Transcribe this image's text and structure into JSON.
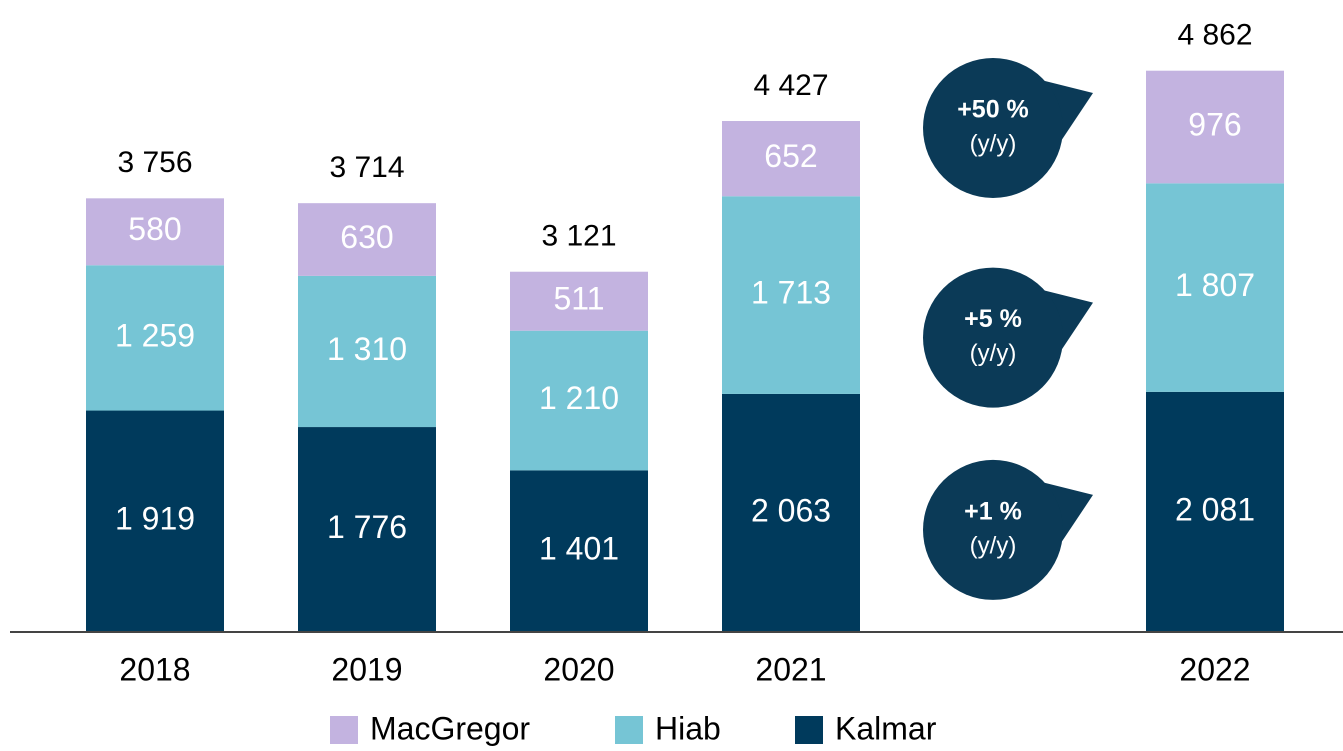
{
  "chart_data": {
    "type": "stacked_bar",
    "categories": [
      "2018",
      "2019",
      "2020",
      "2021",
      "2022"
    ],
    "series": [
      {
        "name": "MacGregor",
        "color": "#c3b3e0",
        "values": [
          580,
          630,
          511,
          652,
          976
        ],
        "change": "+50 %"
      },
      {
        "name": "Hiab",
        "color": "#76c5d5",
        "values": [
          1259,
          1310,
          1210,
          1713,
          1807
        ],
        "value_labels": [
          "1 259",
          "1 310",
          "1 210",
          "1 713",
          "1 807"
        ],
        "change": "+5 %"
      },
      {
        "name": "Kalmar",
        "color": "#003a5c",
        "values": [
          1919,
          1776,
          1401,
          2063,
          2081
        ],
        "value_labels": [
          "1 919",
          "1 776",
          "1 401",
          "2 063",
          "2 081"
        ],
        "change": "+1 %"
      }
    ],
    "totals": [
      3756,
      3714,
      3121,
      4427,
      4862
    ],
    "totals_labels": [
      "3 756",
      "3 714",
      "3 121",
      "4 427",
      "4 862"
    ],
    "change_note": "(y/y)",
    "bubble_color": "#0b3a57",
    "ylim": [
      0,
      5000
    ]
  }
}
